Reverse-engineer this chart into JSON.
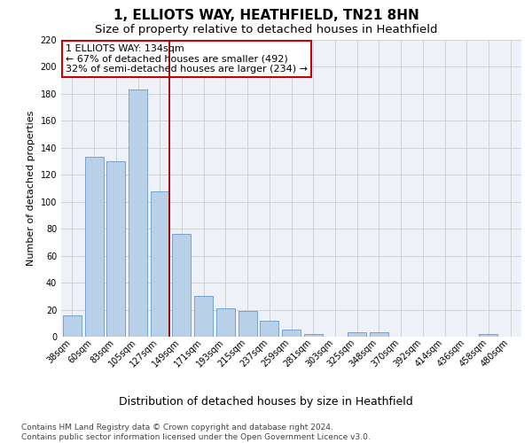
{
  "title": "1, ELLIOTS WAY, HEATHFIELD, TN21 8HN",
  "subtitle": "Size of property relative to detached houses in Heathfield",
  "xlabel": "Distribution of detached houses by size in Heathfield",
  "ylabel": "Number of detached properties",
  "categories": [
    "38sqm",
    "60sqm",
    "83sqm",
    "105sqm",
    "127sqm",
    "149sqm",
    "171sqm",
    "193sqm",
    "215sqm",
    "237sqm",
    "259sqm",
    "281sqm",
    "303sqm",
    "325sqm",
    "348sqm",
    "370sqm",
    "392sqm",
    "414sqm",
    "436sqm",
    "458sqm",
    "480sqm"
  ],
  "values": [
    16,
    133,
    130,
    183,
    108,
    76,
    30,
    21,
    19,
    12,
    5,
    2,
    0,
    3,
    3,
    0,
    0,
    0,
    0,
    2,
    0
  ],
  "bar_color": "#b8d0e8",
  "bar_edge_color": "#6699cc",
  "vline_color": "#990000",
  "vline_x_index": 4,
  "annotation_text": "1 ELLIOTS WAY: 134sqm\n← 67% of detached houses are smaller (492)\n32% of semi-detached houses are larger (234) →",
  "box_color": "#ffffff",
  "box_edge_color": "#cc0000",
  "ylim": [
    0,
    220
  ],
  "yticks": [
    0,
    20,
    40,
    60,
    80,
    100,
    120,
    140,
    160,
    180,
    200,
    220
  ],
  "grid_color": "#cccccc",
  "bg_color": "#eef2f8",
  "footer": "Contains HM Land Registry data © Crown copyright and database right 2024.\nContains public sector information licensed under the Open Government Licence v3.0.",
  "title_fontsize": 11,
  "subtitle_fontsize": 9.5,
  "xlabel_fontsize": 9,
  "ylabel_fontsize": 8,
  "tick_fontsize": 7,
  "annotation_fontsize": 8,
  "footer_fontsize": 6.5
}
